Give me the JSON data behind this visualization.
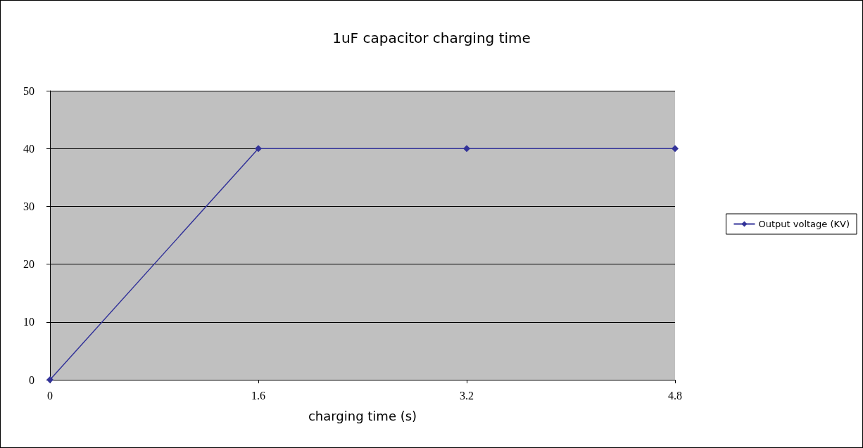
{
  "chart_data": {
    "type": "line",
    "title": "1uF capacitor charging time",
    "xlabel": "charging time (s)",
    "categories": [
      "0",
      "1.6",
      "3.2",
      "4.8"
    ],
    "series": [
      {
        "name": "Output voltage (KV)",
        "color": "#333399",
        "values": [
          0,
          40,
          40,
          40
        ]
      }
    ],
    "ylim": [
      0,
      50
    ],
    "yticks": [
      0,
      10,
      20,
      30,
      40,
      50
    ],
    "grid": "y",
    "legend": "right",
    "marker": "diamond"
  }
}
